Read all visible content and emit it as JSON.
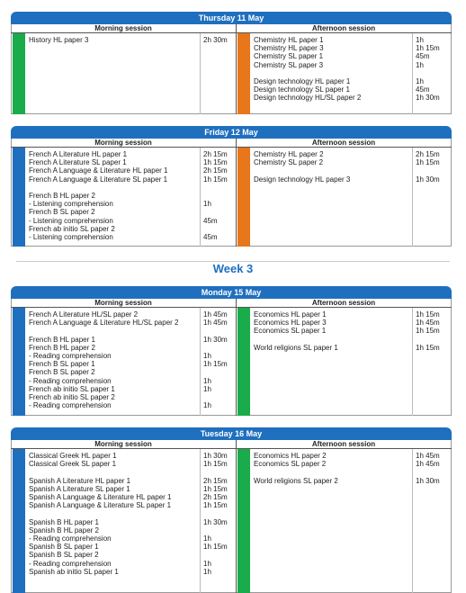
{
  "days": [
    {
      "title": "Thursday 11 May",
      "morning": {
        "header": "Morning session",
        "color": "#1aab4b",
        "groups": [
          [
            {
              "paper": "History HL paper 3",
              "duration": "2h 30m"
            }
          ]
        ]
      },
      "afternoon": {
        "header": "Afternoon session",
        "color": "#e8761b",
        "groups": [
          [
            {
              "paper": "Chemistry HL paper 1",
              "duration": "1h"
            },
            {
              "paper": "Chemistry HL paper 3",
              "duration": "1h 15m"
            },
            {
              "paper": "Chemistry SL paper 1",
              "duration": "45m"
            },
            {
              "paper": "Chemistry SL paper 3",
              "duration": "1h"
            }
          ],
          [
            {
              "paper": "Design technology HL paper 1",
              "duration": "1h"
            },
            {
              "paper": "Design technology SL paper 1",
              "duration": "45m"
            },
            {
              "paper": "Design technology HL/SL paper 2",
              "duration": "1h 30m"
            }
          ]
        ]
      }
    },
    {
      "title": "Friday 12 May",
      "morning": {
        "header": "Morning session",
        "color": "#1f6fbf",
        "groups": [
          [
            {
              "paper": "French A Literature HL paper 1",
              "duration": "2h 15m"
            },
            {
              "paper": "French A Literature SL paper 1",
              "duration": "1h 15m"
            },
            {
              "paper": "French A Language & Literature HL paper 1",
              "duration": "2h 15m"
            },
            {
              "paper": "French A Language & Literature SL paper 1",
              "duration": "1h 15m"
            }
          ],
          [
            {
              "paper": "French B HL paper 2"
            },
            {
              "paper": "- Listening comprehension",
              "duration": "1h"
            },
            {
              "paper": "French B SL paper 2"
            },
            {
              "paper": "- Listening comprehension",
              "duration": "45m"
            },
            {
              "paper": "French ab initio SL paper 2"
            },
            {
              "paper": "- Listening comprehension",
              "duration": "45m"
            }
          ]
        ]
      },
      "afternoon": {
        "header": "Afternoon session",
        "color": "#e8761b",
        "groups": [
          [
            {
              "paper": "Chemistry HL paper 2",
              "duration": "2h 15m"
            },
            {
              "paper": "Chemistry SL paper 2",
              "duration": "1h 15m"
            }
          ],
          [
            {
              "paper": "Design technology HL paper 3",
              "duration": "1h 30m"
            }
          ]
        ]
      }
    },
    {
      "title": "Monday 15 May",
      "morning": {
        "header": "Morning session",
        "color": "#1f6fbf",
        "groups": [
          [
            {
              "paper": "French A Literature HL/SL paper 2",
              "duration": "1h 45m"
            },
            {
              "paper": "French A Language & Literature HL/SL paper 2",
              "duration": "1h 45m"
            }
          ],
          [
            {
              "paper": "French B HL paper 1",
              "duration": "1h 30m"
            },
            {
              "paper": "French B HL paper 2"
            },
            {
              "paper": "- Reading comprehension",
              "duration": "1h"
            },
            {
              "paper": "French B SL paper 1",
              "duration": "1h 15m"
            },
            {
              "paper": "French B SL paper 2"
            },
            {
              "paper": "- Reading comprehension",
              "duration": "1h"
            },
            {
              "paper": "French ab initio SL paper 1",
              "duration": "1h"
            },
            {
              "paper": "French ab initio SL paper 2"
            },
            {
              "paper": "- Reading comprehension",
              "duration": "1h"
            }
          ]
        ]
      },
      "afternoon": {
        "header": "Afternoon session",
        "color": "#1aab4b",
        "groups": [
          [
            {
              "paper": "Economics HL paper 1",
              "duration": "1h 15m"
            },
            {
              "paper": "Economics HL paper 3",
              "duration": "1h 45m"
            },
            {
              "paper": "Economics SL paper 1",
              "duration": "1h 15m"
            }
          ],
          [
            {
              "paper": "World religions SL paper 1",
              "duration": "1h 15m"
            }
          ]
        ]
      }
    },
    {
      "title": "Tuesday 16 May",
      "morning": {
        "header": "Morning session",
        "color": "#1f6fbf",
        "groups": [
          [
            {
              "paper": "Classical Greek HL paper 1",
              "duration": "1h 30m"
            },
            {
              "paper": "Classical Greek SL paper 1",
              "duration": "1h 15m"
            }
          ],
          [
            {
              "paper": "Spanish A Literature HL paper 1",
              "duration": "2h 15m"
            },
            {
              "paper": "Spanish A Literature SL paper 1",
              "duration": "1h 15m"
            },
            {
              "paper": "Spanish A Language & Literature HL paper 1",
              "duration": "2h 15m"
            },
            {
              "paper": "Spanish A Language & Literature SL paper 1",
              "duration": "1h 15m"
            }
          ],
          [
            {
              "paper": "Spanish B HL paper 1",
              "duration": "1h 30m"
            },
            {
              "paper": "Spanish B HL paper 2"
            },
            {
              "paper": "- Reading comprehension",
              "duration": "1h"
            },
            {
              "paper": "Spanish B SL paper 1",
              "duration": "1h 15m"
            },
            {
              "paper": "Spanish B SL paper 2"
            },
            {
              "paper": "- Reading comprehension",
              "duration": "1h"
            },
            {
              "paper": "Spanish ab initio SL paper 1",
              "duration": "1h"
            }
          ]
        ]
      },
      "afternoon": {
        "header": "Afternoon session",
        "color": "#1aab4b",
        "groups": [
          [
            {
              "paper": "Economics HL paper 2",
              "duration": "1h 45m"
            },
            {
              "paper": "Economics SL paper 2",
              "duration": "1h 45m"
            }
          ],
          [
            {
              "paper": "World religions SL paper 2",
              "duration": "1h 30m"
            }
          ]
        ]
      }
    }
  ],
  "week_heading": "Week 3"
}
